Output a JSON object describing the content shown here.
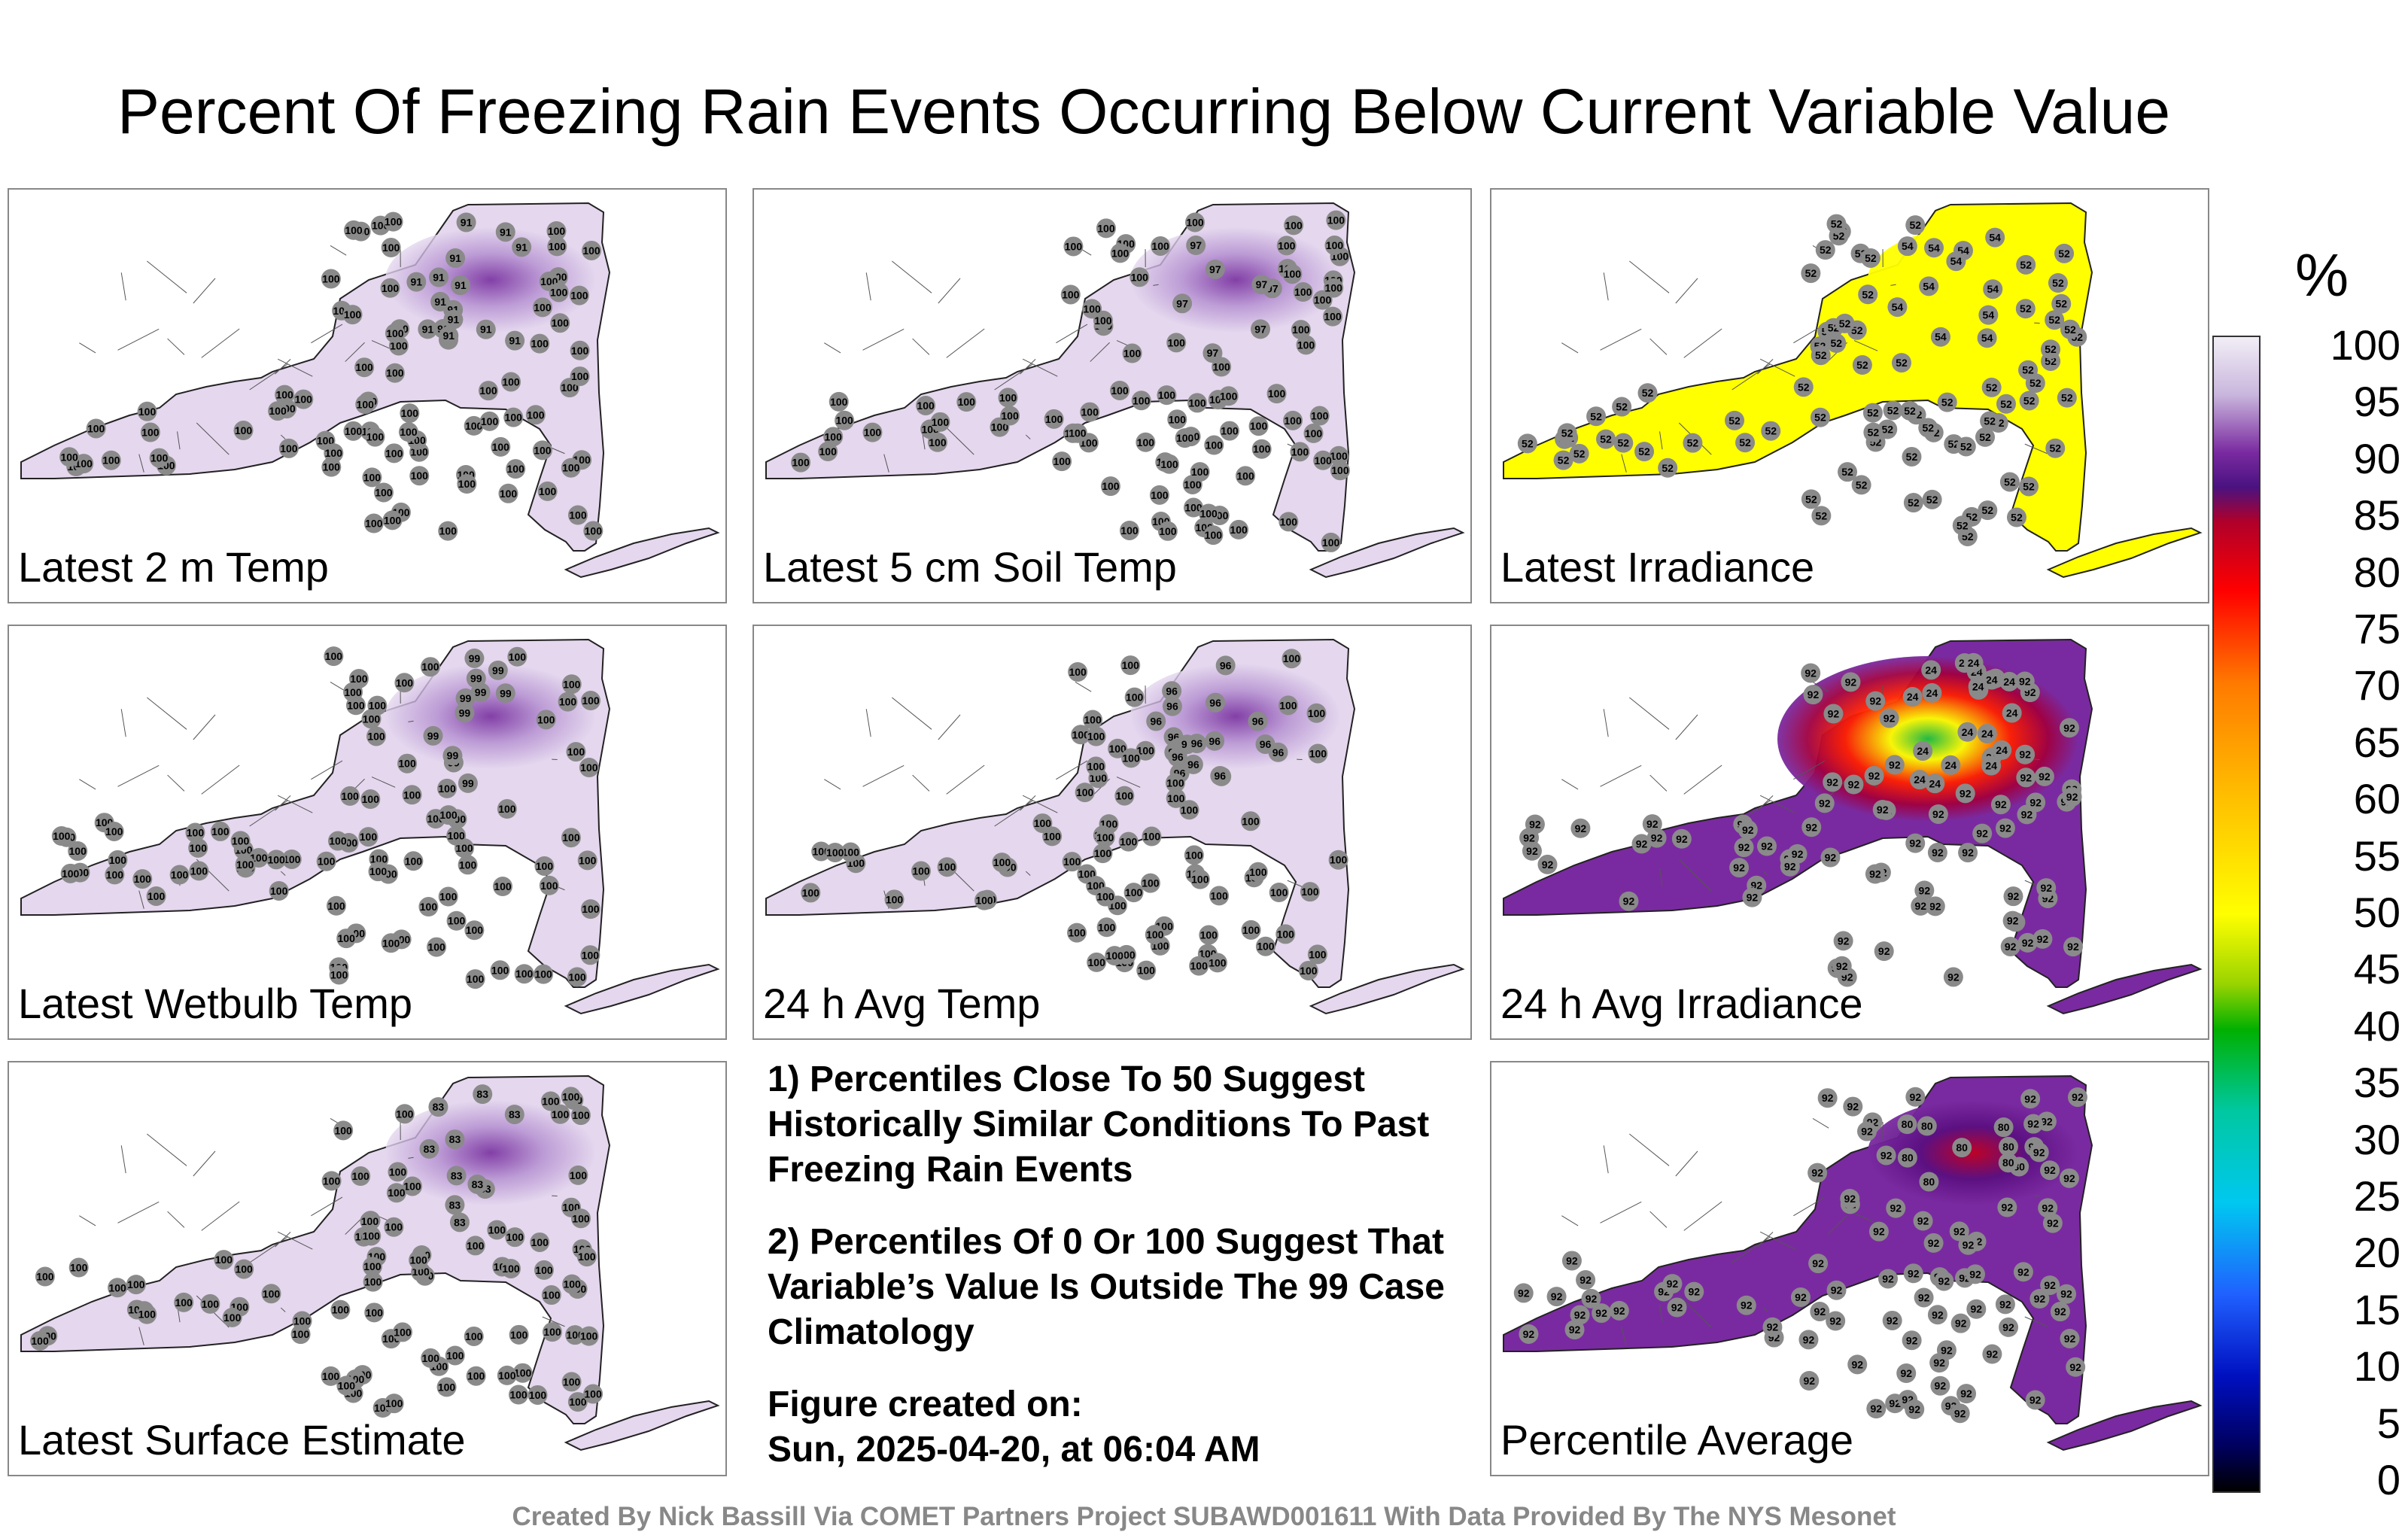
{
  "title": "Percent Of Freezing Rain Events Occurring Below Current Variable Value",
  "colors": {
    "high_lavender": "#e4d7ee",
    "mid_purple": "#7a2aa0",
    "yellow": "#ffff00",
    "station_marker": "#8a8a8a"
  },
  "panels": [
    {
      "label": "Latest 2 m Temp",
      "fill": "lavender",
      "typical_value": "100",
      "hotspot": "91"
    },
    {
      "label": "Latest 5 cm Soil Temp",
      "fill": "lavender",
      "typical_value": "100",
      "hotspot": "97"
    },
    {
      "label": "Latest Irradiance",
      "fill": "yellow",
      "typical_value": "52",
      "hotspot": "54"
    },
    {
      "label": "Latest Wetbulb Temp",
      "fill": "lavender",
      "typical_value": "100",
      "hotspot": "99"
    },
    {
      "label": "24 h Avg Temp",
      "fill": "lavender",
      "typical_value": "100",
      "hotspot": "96"
    },
    {
      "label": "24 h Avg Irradiance",
      "fill": "purple",
      "typical_value": "92",
      "hotspot": "24"
    },
    {
      "label": "Latest Surface Estimate",
      "fill": "lavender",
      "typical_value": "100",
      "hotspot": "83"
    },
    {
      "label": "Percentile Average",
      "fill": "purple",
      "typical_value": "92",
      "hotspot": "80"
    }
  ],
  "notes": [
    "1) Percentiles Close To 50 Suggest Historically Similar Conditions To Past Freezing Rain Events",
    "2) Percentiles Of 0 Or 100 Suggest That Variable’s Value Is Outside The 99 Case Climatology",
    "Figure created on:",
    "Sun, 2025-04-20, at 06:04 AM"
  ],
  "colorbar": {
    "unit": "%",
    "ticks": [
      "100",
      "95",
      "90",
      "85",
      "80",
      "75",
      "70",
      "65",
      "60",
      "55",
      "50",
      "45",
      "40",
      "35",
      "30",
      "25",
      "20",
      "15",
      "10",
      "5",
      "0"
    ]
  },
  "footer": "Created By Nick Bassill Via COMET Partners Project SUBAWD001611 With Data Provided By The NYS Mesonet"
}
